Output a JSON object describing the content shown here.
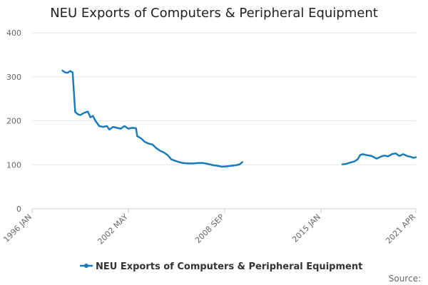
{
  "colors": {
    "series": "#1a7bb8",
    "grid": "#e6e6e6",
    "axis": "#cccccc",
    "text": "#666666"
  },
  "source_label": "Source:",
  "chart_data": {
    "type": "line",
    "title": "NEU Exports of Computers & Peripheral Equipment",
    "xlabel": "",
    "ylabel": "",
    "xlim": [
      "1996-01",
      "2021-04"
    ],
    "ylim": [
      0,
      400
    ],
    "yticks": [
      "0",
      "100",
      "200",
      "300",
      "400"
    ],
    "ytick_values": [
      0,
      100,
      200,
      300,
      400
    ],
    "xticks": [
      "1996 JAN",
      "2002 MAY",
      "2008 SEP",
      "2015 JAN",
      "2021 APR"
    ],
    "xtick_dates": [
      "1996-01",
      "2002-05",
      "2008-09",
      "2015-01",
      "2021-04"
    ],
    "grid": true,
    "legend": "bottom-center",
    "series": [
      {
        "name": "NEU Exports of Computers & Peripheral Equipment",
        "segments": [
          [
            [
              "1998-01",
              314
            ],
            [
              "1998-03",
              310
            ],
            [
              "1998-05",
              309
            ],
            [
              "1998-07",
              313
            ],
            [
              "1998-09",
              310
            ],
            [
              "1998-11",
              220
            ],
            [
              "1999-01",
              215
            ],
            [
              "1999-03",
              213
            ],
            [
              "1999-06",
              218
            ],
            [
              "1999-09",
              221
            ],
            [
              "1999-11",
              208
            ],
            [
              "2000-01",
              211
            ],
            [
              "2000-03",
              200
            ],
            [
              "2000-06",
              188
            ],
            [
              "2000-09",
              186
            ],
            [
              "2000-12",
              188
            ],
            [
              "2001-02",
              180
            ],
            [
              "2001-05",
              186
            ],
            [
              "2001-08",
              184
            ],
            [
              "2001-11",
              182
            ],
            [
              "2002-02",
              188
            ],
            [
              "2002-05",
              182
            ],
            [
              "2002-08",
              184
            ],
            [
              "2002-11",
              183
            ],
            [
              "2002-12",
              165
            ],
            [
              "2003-03",
              160
            ],
            [
              "2003-06",
              152
            ],
            [
              "2003-09",
              148
            ],
            [
              "2003-12",
              146
            ],
            [
              "2004-03",
              138
            ],
            [
              "2004-06",
              132
            ],
            [
              "2004-09",
              128
            ],
            [
              "2004-12",
              122
            ],
            [
              "2005-03",
              112
            ],
            [
              "2005-06",
              109
            ],
            [
              "2005-09",
              106
            ],
            [
              "2005-12",
              104
            ],
            [
              "2006-04",
              103
            ],
            [
              "2006-08",
              103
            ],
            [
              "2006-12",
              104
            ],
            [
              "2007-04",
              104
            ],
            [
              "2007-06",
              103
            ],
            [
              "2007-09",
              101
            ],
            [
              "2007-12",
              99
            ],
            [
              "2008-03",
              98
            ],
            [
              "2008-06",
              96
            ],
            [
              "2008-09",
              96
            ],
            [
              "2008-12",
              97
            ],
            [
              "2009-03",
              98
            ],
            [
              "2009-06",
              99
            ],
            [
              "2009-09",
              101
            ],
            [
              "2009-11",
              106
            ]
          ],
          [
            [
              "2016-06",
              101
            ],
            [
              "2016-09",
              102
            ],
            [
              "2016-12",
              105
            ],
            [
              "2017-03",
              107
            ],
            [
              "2017-06",
              112
            ],
            [
              "2017-08",
              122
            ],
            [
              "2017-10",
              124
            ],
            [
              "2018-01",
              122
            ],
            [
              "2018-05",
              120
            ],
            [
              "2018-09",
              114
            ],
            [
              "2018-12",
              118
            ],
            [
              "2019-03",
              121
            ],
            [
              "2019-06",
              119
            ],
            [
              "2019-09",
              124
            ],
            [
              "2019-12",
              126
            ],
            [
              "2020-03",
              120
            ],
            [
              "2020-06",
              124
            ],
            [
              "2020-09",
              120
            ],
            [
              "2020-12",
              118
            ],
            [
              "2021-02",
              116
            ],
            [
              "2021-04",
              117
            ]
          ]
        ]
      }
    ]
  }
}
